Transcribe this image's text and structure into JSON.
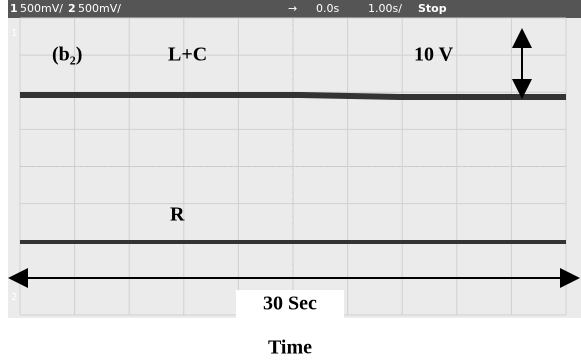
{
  "status_bar": {
    "ch1_label": "1",
    "ch1_scale": "500mV/",
    "ch2_label": "2",
    "ch2_scale": "500mV/",
    "trigger_arrow": "→",
    "delay": "0.0s",
    "timebase": "1.00s/",
    "run_state": "Stop"
  },
  "annotations": {
    "panel": "(b₂)",
    "top_trace": "L+C",
    "amplitude": "10 V",
    "bottom_trace": "R",
    "duration": "30 Sec"
  },
  "axis_label": "Time"
}
